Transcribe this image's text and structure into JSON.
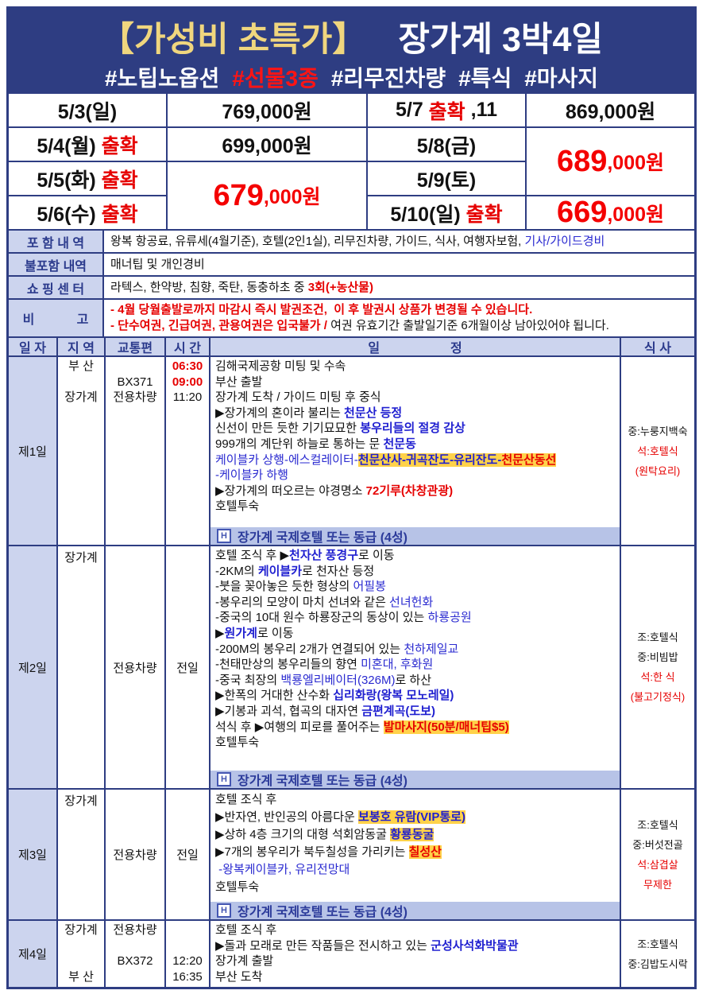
{
  "colors": {
    "navy": "#2e3d82",
    "light_blue": "#ccd4ee",
    "footer_blue": "#b7c3e7",
    "gold": "#f0d67e",
    "red": "#e60000",
    "blue": "#1f1fd0",
    "highlight": "#ffd24a"
  },
  "header": {
    "title_highlight": "【가성비 초특가】",
    "title_main": "장가계 3박4일",
    "hashtags": [
      {
        "t": "#노팁노옵션"
      },
      {
        "t": "#선물3종",
        "s": "red"
      },
      {
        "t": "#리무진차량"
      },
      {
        "t": "#특식"
      },
      {
        "t": "#마사지"
      }
    ]
  },
  "price_table": {
    "cells": [
      {
        "r": 1,
        "c": 1,
        "segs": [
          {
            "t": "5/3(일)",
            "s": "k"
          }
        ]
      },
      {
        "r": 1,
        "c": 2,
        "segs": [
          {
            "t": "769,000원",
            "s": "k"
          }
        ]
      },
      {
        "r": 1,
        "c": 3,
        "segs": [
          {
            "t": "5/7 ",
            "s": "k"
          },
          {
            "t": "출확",
            "s": "rb"
          },
          {
            "t": " ,11",
            "s": "k"
          }
        ]
      },
      {
        "r": 1,
        "c": 4,
        "segs": [
          {
            "t": "869,000원",
            "s": "k"
          }
        ]
      },
      {
        "r": 2,
        "c": 1,
        "segs": [
          {
            "t": "5/4(월) ",
            "s": "k"
          },
          {
            "t": "출확",
            "s": "rb"
          }
        ]
      },
      {
        "r": 2,
        "c": 2,
        "segs": [
          {
            "t": "699,000원",
            "s": "k"
          }
        ]
      },
      {
        "r": 2,
        "c": 3,
        "segs": [
          {
            "t": "5/8(금)",
            "s": "k"
          }
        ]
      },
      {
        "r": 2,
        "c": 4,
        "rs": 2,
        "big": {
          "main": "689",
          "rest": ",000원"
        }
      },
      {
        "r": 3,
        "c": 1,
        "segs": [
          {
            "t": "5/5(화) ",
            "s": "k"
          },
          {
            "t": "출확",
            "s": "rb"
          }
        ]
      },
      {
        "r": 3,
        "c": 2,
        "rs": 2,
        "big": {
          "main": "679",
          "rest": ",000원"
        }
      },
      {
        "r": 3,
        "c": 3,
        "segs": [
          {
            "t": "5/9(토)",
            "s": "k"
          }
        ]
      },
      {
        "r": 4,
        "c": 1,
        "segs": [
          {
            "t": "5/6(수) ",
            "s": "k"
          },
          {
            "t": "출확",
            "s": "rb"
          }
        ]
      },
      {
        "r": 4,
        "c": 3,
        "segs": [
          {
            "t": "5/10(일) ",
            "s": "k"
          },
          {
            "t": "출확",
            "s": "rb"
          }
        ]
      },
      {
        "r": 4,
        "c": 4,
        "big": {
          "main": "669",
          "rest": ",000원"
        }
      }
    ]
  },
  "info_table": {
    "rows": [
      {
        "label": "포 함 내 역",
        "lines": [
          [
            {
              "t": "왕복 항공료, 유류세(4월기준), 호텔(2인1실), 리무진차량, 가이드, 식사, 여행자보험, ",
              "s": "k"
            },
            {
              "t": "기사/가이드경비",
              "s": "b"
            }
          ]
        ]
      },
      {
        "label": "불포함 내역",
        "lines": [
          [
            {
              "t": "매너팁 및 개인경비",
              "s": "k"
            }
          ]
        ]
      },
      {
        "label": "쇼 핑 센 터",
        "lines": [
          [
            {
              "t": "라텍스, 한약방, 침향, 죽탄, 동충하초 중 ",
              "s": "k"
            },
            {
              "t": "3회(+농산물)",
              "s": "rb"
            }
          ]
        ]
      },
      {
        "label": "비            고",
        "lines": [
          [
            {
              "t": "- 4월 당월출발로까지 마감시 즉시 발권조건,  이 후 발권시 상품가 변경될 수 있습니다.",
              "s": "rb"
            }
          ],
          [
            {
              "t": "- 단수여권, 긴급여권, 관용여권은 입국불가 / ",
              "s": "rb"
            },
            {
              "t": "여권 유효기간 출발일기준 6개월이상 남아있어야 됩니다.",
              "s": "k"
            }
          ]
        ]
      }
    ]
  },
  "itinerary": {
    "header": [
      "일 자",
      "지 역",
      "교통편",
      "시 간",
      "일                    정",
      "식 사"
    ],
    "days": [
      {
        "label": "제1일",
        "side": {
          "rows": [
            {
              "rg": "부 산",
              "tr": "",
              "tm": "06:30",
              "ts": "rb"
            },
            {
              "rg": "",
              "tr": "BX371",
              "tm": "09:00",
              "ts": "rb"
            },
            {
              "rg": "장가계",
              "tr": "전용차량",
              "tm": "11:20",
              "ts": "k"
            }
          ]
        },
        "lines": [
          [
            {
              "t": "김해국제공항 미팅 및 수속",
              "s": "k"
            }
          ],
          [
            {
              "t": "부산 출발",
              "s": "k"
            }
          ],
          [
            {
              "t": "장가계 도착 / 가이드 미팅 후 중식",
              "s": "k"
            }
          ],
          [
            {
              "t": "▶장가계의 혼이라 불리는 ",
              "s": "k"
            },
            {
              "t": "천문산 등정",
              "s": "bb"
            }
          ],
          [
            {
              "t": "신선이 만든 듯한 기기묘묘한 ",
              "s": "k"
            },
            {
              "t": "봉우리들의 절경 감상",
              "s": "bb"
            }
          ],
          [
            {
              "t": "999개의 계단위 하늘로 통하는 문 ",
              "s": "k"
            },
            {
              "t": "천문동",
              "s": "bb"
            }
          ],
          [
            {
              "t": "케이블카 상행-에스컬레이터-",
              "s": "b"
            },
            {
              "t": "천문산사-귀곡잔도-유리잔도-",
              "s": "hb"
            },
            {
              "t": "천문산동선",
              "s": "hr"
            }
          ],
          [
            {
              "t": "-케이블카 하행",
              "s": "b"
            }
          ],
          [
            {
              "t": "▶장가계의 떠오르는 야경명소 ",
              "s": "k"
            },
            {
              "t": "72기루(차창관광)",
              "s": "rb"
            }
          ],
          [
            {
              "t": "호텔투숙",
              "s": "k"
            }
          ]
        ],
        "hotel": {
          "icon": "H",
          "text": "장가계 국제호텔 또는 동급 (4성)"
        },
        "meals": [
          {
            "t": "중:누룽지백숙",
            "s": "k"
          },
          {
            "t": "석:호텔식",
            "s": "r"
          },
          {
            "t": "(원탁요리)",
            "s": "r"
          }
        ]
      },
      {
        "label": "제2일",
        "side": {
          "region_top": "장가계",
          "transport": "전용차량",
          "time": "전일"
        },
        "lines": [
          [
            {
              "t": "호텔 조식 후 ▶",
              "s": "k"
            },
            {
              "t": "천자산 풍경구",
              "s": "bb"
            },
            {
              "t": "로 이동",
              "s": "k"
            }
          ],
          [
            {
              "t": "-2KM의 ",
              "s": "k"
            },
            {
              "t": "케이블카",
              "s": "bb"
            },
            {
              "t": "로 천자산 등정",
              "s": "k"
            }
          ],
          [
            {
              "t": "-붓을 꽂아놓은 듯한 형상의 ",
              "s": "k"
            },
            {
              "t": "어필봉",
              "s": "b"
            }
          ],
          [
            {
              "t": "-봉우리의 모양이 마치 선녀와 같은 ",
              "s": "k"
            },
            {
              "t": "선녀헌화",
              "s": "b"
            }
          ],
          [
            {
              "t": "-중국의 10대 원수 하룡장군의 동상이 있는 ",
              "s": "k"
            },
            {
              "t": "하룡공원",
              "s": "b"
            }
          ],
          [
            {
              "t": "▶",
              "s": "k"
            },
            {
              "t": "원가계",
              "s": "bb"
            },
            {
              "t": "로 이동",
              "s": "k"
            }
          ],
          [
            {
              "t": "-200M의 봉우리 2개가 연결되어 있는 ",
              "s": "k"
            },
            {
              "t": "천하제일교",
              "s": "b"
            }
          ],
          [
            {
              "t": "-천태만상의 봉우리들의 향연 ",
              "s": "k"
            },
            {
              "t": "미혼대, 후화원",
              "s": "b"
            }
          ],
          [
            {
              "t": "-중국 최장의 ",
              "s": "k"
            },
            {
              "t": "백룡엘리베이터(326M)",
              "s": "b"
            },
            {
              "t": "로 하산",
              "s": "k"
            }
          ],
          [
            {
              "t": "▶한폭의 거대한 산수화 ",
              "s": "k"
            },
            {
              "t": "십리화랑(왕복 모노레일)",
              "s": "bb"
            }
          ],
          [
            {
              "t": "▶기봉과 괴석, 협곡의 대자연 ",
              "s": "k"
            },
            {
              "t": "금편계곡(도보)",
              "s": "bb"
            }
          ],
          [
            {
              "t": "석식 후 ▶여행의 피로를 풀어주는 ",
              "s": "k"
            },
            {
              "t": "발마사지(50분/매너팁$5)",
              "s": "hr"
            }
          ],
          [
            {
              "t": "호텔투숙",
              "s": "k"
            }
          ]
        ],
        "hotel": {
          "icon": "H",
          "text": "장가계 국제호텔 또는 동급 (4성)"
        },
        "meals": [
          {
            "t": "조:호텔식",
            "s": "k"
          },
          {
            "t": "중:비빔밥",
            "s": "k"
          },
          {
            "t": "석:한 식",
            "s": "r"
          },
          {
            "t": "(불고기정식)",
            "s": "r"
          }
        ]
      },
      {
        "label": "제3일",
        "side": {
          "region_top": "장가계",
          "transport": "전용차량",
          "time": "전일"
        },
        "lines": [
          [
            {
              "t": "호텔 조식 후",
              "s": "k"
            }
          ],
          [
            {
              "t": "▶반자연, 반인공의 아름다운 ",
              "s": "k"
            },
            {
              "t": "보봉호 유람(VIP통로)",
              "s": "hb"
            }
          ],
          [
            {
              "t": "▶상하 4층 크기의 대형 석회암동굴 ",
              "s": "k"
            },
            {
              "t": "황룡동굴",
              "s": "hb"
            }
          ],
          [
            {
              "t": "▶7개의 봉우리가 북두칠성을 가리키는 ",
              "s": "k"
            },
            {
              "t": "칠성산",
              "s": "hr"
            }
          ],
          [
            {
              "t": " -왕복케이블카, 유리전망대",
              "s": "b"
            }
          ],
          [
            {
              "t": "호텔투숙",
              "s": "k"
            }
          ]
        ],
        "hotel": {
          "icon": "H",
          "text": "장가계 국제호텔 또는 동급 (4성)"
        },
        "meals": [
          {
            "t": "조:호텔식",
            "s": "k"
          },
          {
            "t": "중:버섯전골",
            "s": "k"
          },
          {
            "t": "석:삼겹살",
            "s": "r"
          },
          {
            "t": "무제한",
            "s": "r"
          }
        ]
      },
      {
        "label": "제4일",
        "side": {
          "rows": [
            {
              "rg": "장가계",
              "tr": "전용차량",
              "tm": "",
              "ts": "k"
            },
            {
              "rg": "",
              "tr": "",
              "tm": "",
              "ts": "k"
            },
            {
              "rg": "",
              "tr": "BX372",
              "tm": "12:20",
              "ts": "k"
            },
            {
              "rg": "부 산",
              "tr": "",
              "tm": "16:35",
              "ts": "k"
            }
          ]
        },
        "lines": [
          [
            {
              "t": "호텔 조식 후",
              "s": "k"
            }
          ],
          [
            {
              "t": "▶돌과 모래로 만든 작품들은 전시하고 있는 ",
              "s": "k"
            },
            {
              "t": "군성사석화박물관",
              "s": "bb"
            }
          ],
          [
            {
              "t": "장가계 출발",
              "s": "k"
            }
          ],
          [
            {
              "t": "부산 도착",
              "s": "k"
            }
          ]
        ],
        "hotel": null,
        "meals": [
          {
            "t": "조:호텔식",
            "s": "k"
          },
          {
            "t": "중:김밥도시락",
            "s": "k"
          }
        ]
      }
    ]
  }
}
